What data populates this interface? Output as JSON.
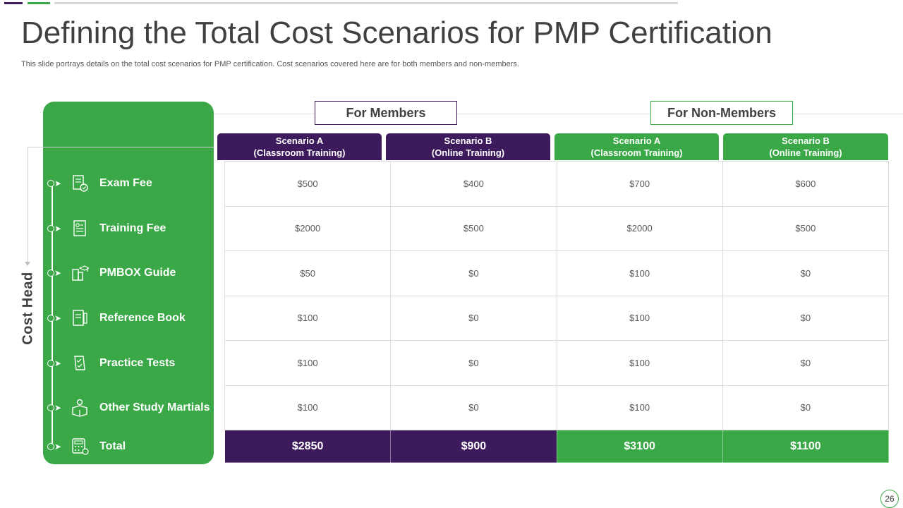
{
  "slide": {
    "title": "Defining the Total Cost Scenarios for PMP Certification",
    "subtitle": "This slide portrays details on the total cost scenarios for PMP certification. Cost scenarios covered here are for both members and non-members.",
    "page_number": "26"
  },
  "groups": {
    "members": "For Members",
    "non_members": "For Non-Members"
  },
  "sidebar": {
    "axis_label": "Cost Head",
    "items": [
      {
        "label": "Exam Fee",
        "icon": "exam-paper-icon"
      },
      {
        "label": "Training Fee",
        "icon": "document-icon"
      },
      {
        "label": "PMBOX   Guide",
        "icon": "book-graduation-icon"
      },
      {
        "label": "Reference Book",
        "icon": "reference-book-icon"
      },
      {
        "label": "Practice Tests",
        "icon": "test-checklist-icon"
      },
      {
        "label": "Other Study Martials",
        "icon": "person-box-icon"
      },
      {
        "label": "Total",
        "icon": "calculator-icon"
      }
    ]
  },
  "columns": [
    {
      "line1": "Scenario A",
      "line2": "(Classroom Training)",
      "group": "members"
    },
    {
      "line1": "Scenario B",
      "line2": "(Online Training)",
      "group": "members"
    },
    {
      "line1": "Scenario A",
      "line2": "(Classroom Training)",
      "group": "non_members"
    },
    {
      "line1": "Scenario B",
      "line2": "(Online Training)",
      "group": "non_members"
    }
  ],
  "table": {
    "rows": [
      [
        "$500",
        "$400",
        "$700",
        "$600"
      ],
      [
        "$2000",
        "$500",
        "$2000",
        "$500"
      ],
      [
        "$50",
        "$0",
        "$100",
        "$0"
      ],
      [
        "$100",
        "$0",
        "$100",
        "$0"
      ],
      [
        "$100",
        "$0",
        "$100",
        "$0"
      ],
      [
        "$100",
        "$0",
        "$100",
        "$0"
      ]
    ],
    "totals": [
      "$2850",
      "$900",
      "$3100",
      "$1100"
    ]
  },
  "colors": {
    "purple": "#3d1a5b",
    "green": "#3aa846"
  }
}
